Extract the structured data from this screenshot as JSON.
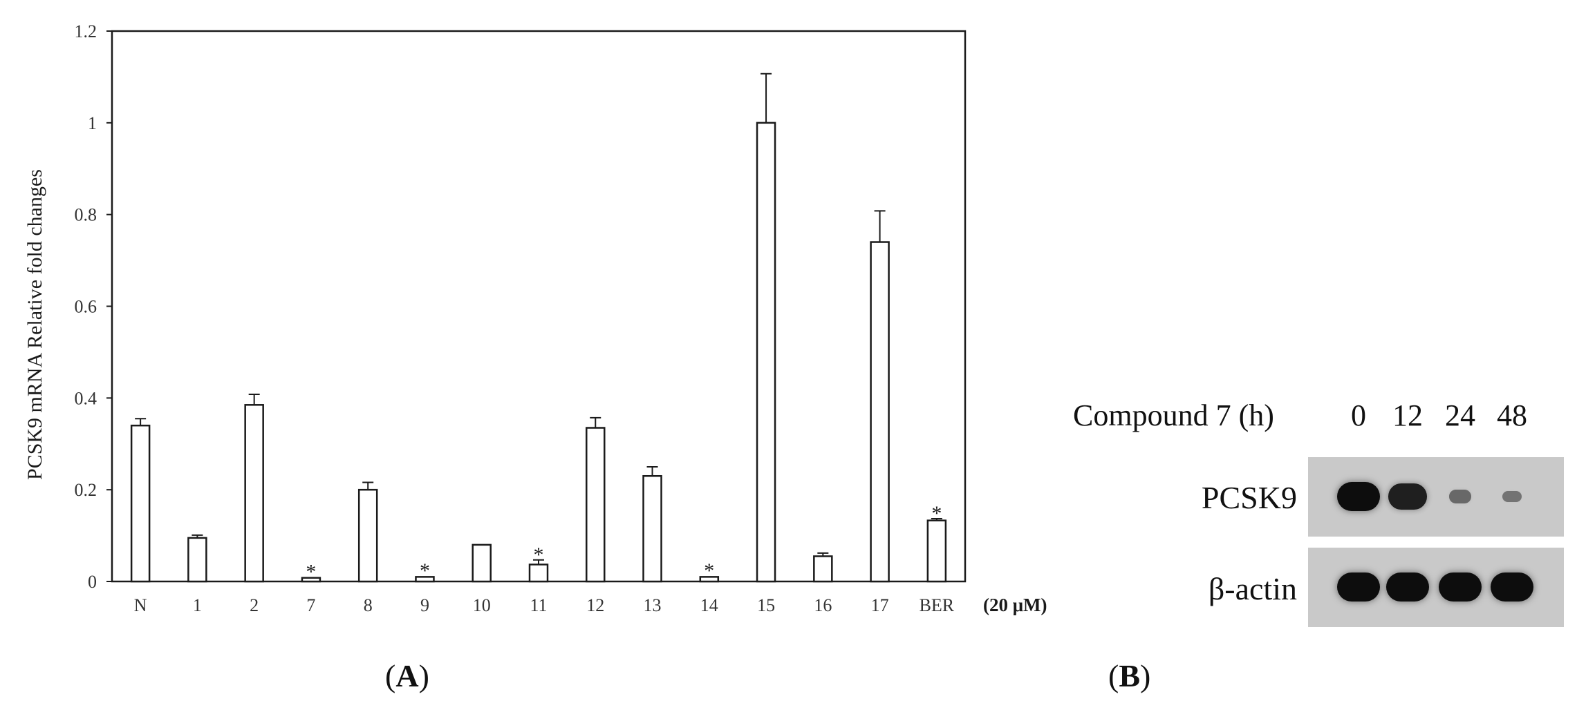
{
  "chart_data": {
    "type": "bar",
    "ylabel": "PCSK9 mRNA Relative  fold  changes",
    "ylim": [
      0,
      1.2
    ],
    "yticks": [
      "0",
      "0.2",
      "0.4",
      "0.6",
      "0.8",
      "1",
      "1.2"
    ],
    "categories": [
      "N",
      "1",
      "2",
      "7",
      "8",
      "9",
      "10",
      "11",
      "12",
      "13",
      "14",
      "15",
      "16",
      "17",
      "BER"
    ],
    "values": [
      0.34,
      0.095,
      0.385,
      0.008,
      0.2,
      0.01,
      0.08,
      0.037,
      0.335,
      0.23,
      0.01,
      1.0,
      0.055,
      0.74,
      0.133
    ],
    "errors": [
      0.015,
      0.006,
      0.023,
      0.002,
      0.016,
      0.002,
      0.002,
      0.01,
      0.022,
      0.02,
      0.002,
      0.107,
      0.007,
      0.068,
      0.004
    ],
    "significant": [
      false,
      false,
      false,
      true,
      false,
      true,
      false,
      true,
      false,
      false,
      true,
      false,
      false,
      false,
      true
    ],
    "significance_marker": "*",
    "unit_note": "(20 μM)",
    "grid": false,
    "bar_fill": "#ffffff",
    "bar_stroke": "#1a1a1a"
  },
  "panel_a": {
    "caption_open": "(",
    "caption_letter": "A",
    "caption_close": ")"
  },
  "panel_b": {
    "caption_open": "(",
    "caption_letter": "B",
    "caption_close": ")",
    "header_label": "Compound 7 (h)",
    "lanes": [
      "0",
      "12",
      "24",
      "48"
    ],
    "rows": [
      {
        "label": "PCSK9",
        "band_intensity": [
          1.0,
          0.85,
          0.25,
          0.15
        ]
      },
      {
        "label": "β-actin",
        "band_intensity": [
          1.0,
          1.0,
          1.0,
          1.0
        ]
      }
    ]
  }
}
